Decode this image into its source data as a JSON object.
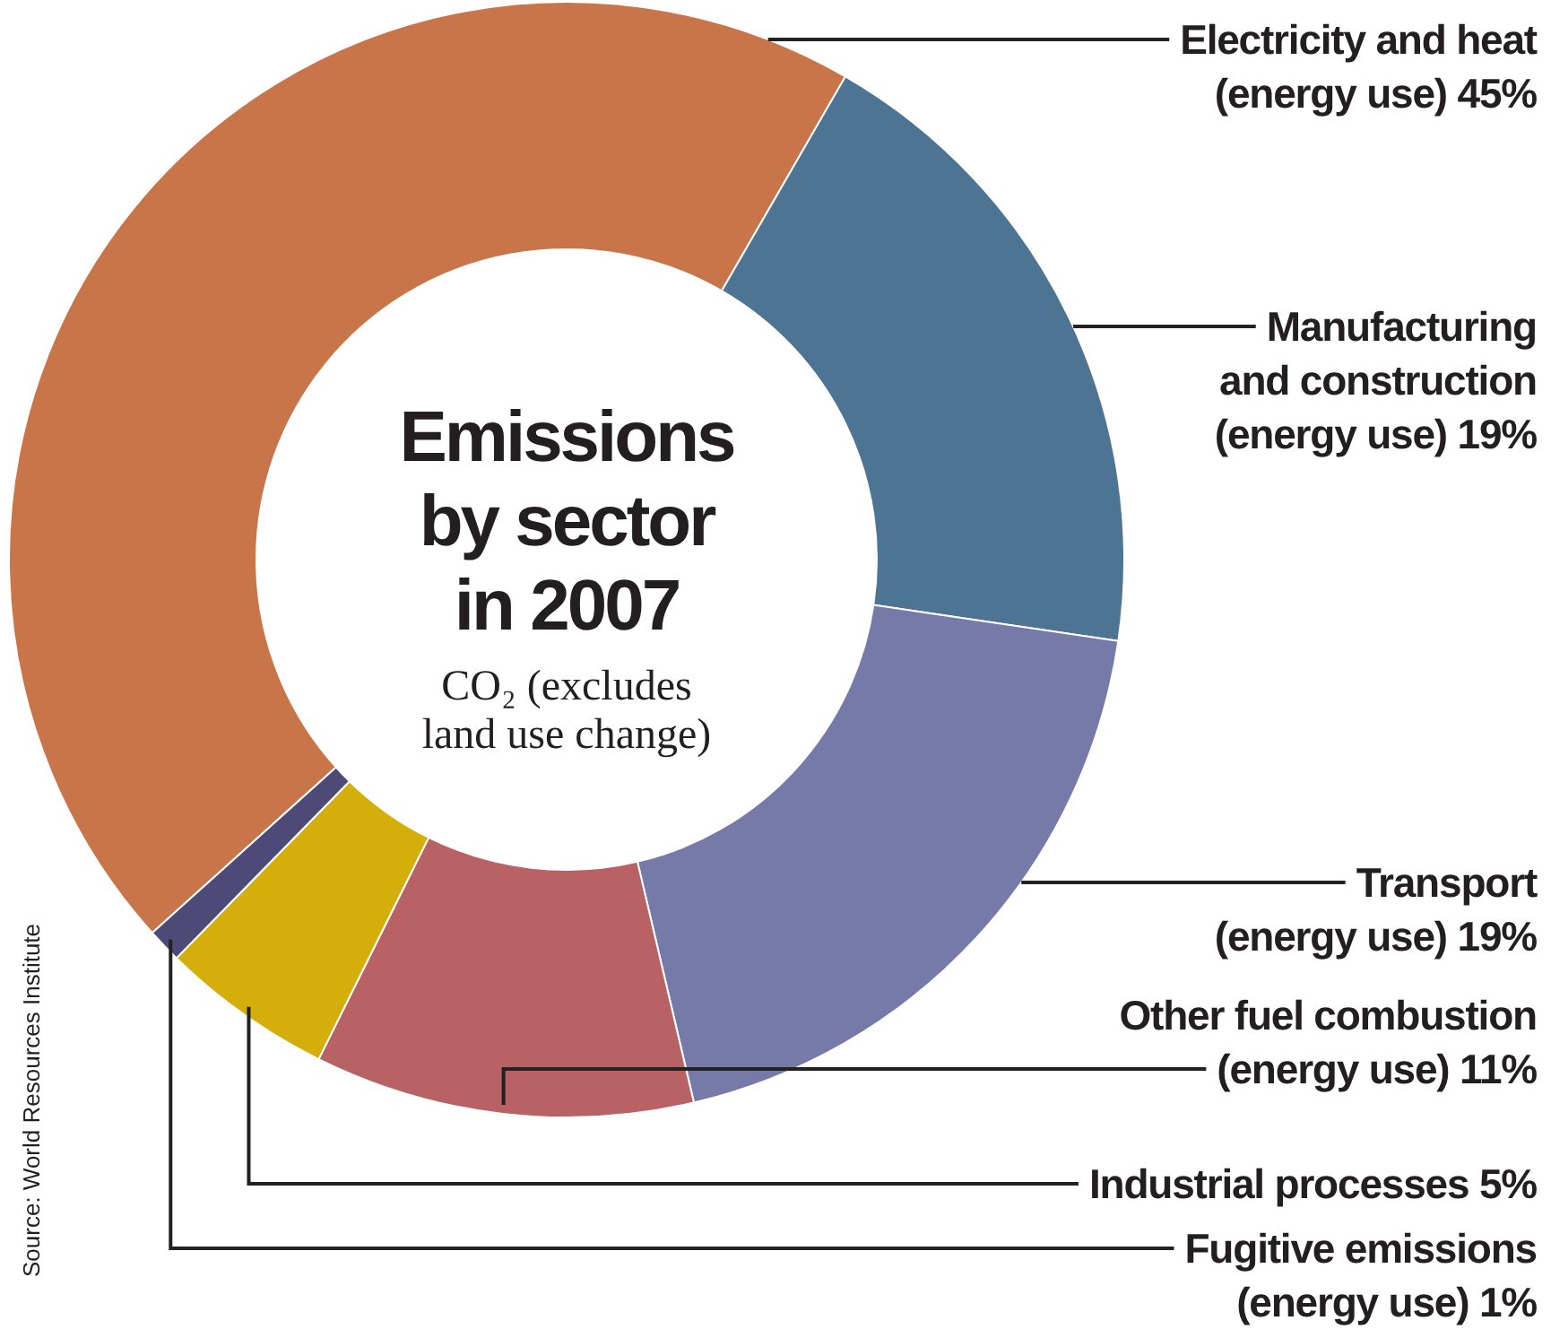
{
  "chart_data": {
    "type": "donut",
    "title": "Emissions by sector in 2007",
    "subtitle": "CO₂ (excludes land use change)",
    "categories": [
      "Electricity and heat (energy use) 45%",
      "Manufacturing and construction (energy use) 19%",
      "Transport (energy use) 19%",
      "Other fuel combustion (energy use) 11%",
      "Industrial processes 5%",
      "Fugitive emissions (energy use) 1%"
    ],
    "values": [
      45,
      19,
      19,
      11,
      5,
      1
    ],
    "colors": [
      "#c8754a",
      "#4d7493",
      "#767aa8",
      "#b96266",
      "#d4ae0b",
      "#4e4a78"
    ],
    "annotations": [
      "Source: World Resources Institute"
    ]
  }
}
